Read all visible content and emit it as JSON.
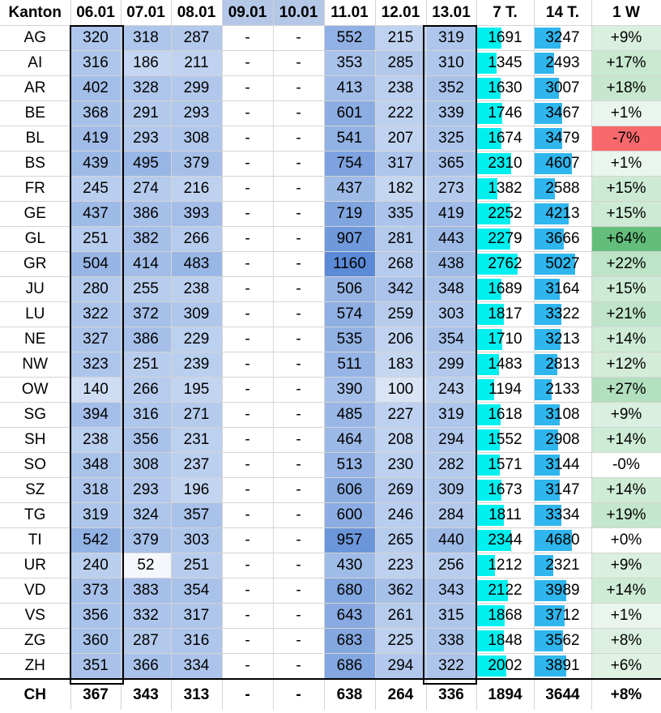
{
  "header": {
    "kanton": "Kanton",
    "days": [
      "06.01",
      "07.01",
      "08.01",
      "09.01",
      "10.01",
      "11.01",
      "12.01",
      "13.01"
    ],
    "sum7": "7 T.",
    "sum14": "14 T.",
    "week": "1 W"
  },
  "chart_data": {
    "type": "table",
    "columns": [
      "Kanton",
      "06.01",
      "07.01",
      "08.01",
      "09.01",
      "10.01",
      "11.01",
      "12.01",
      "13.01",
      "7 T.",
      "14 T.",
      "1 W"
    ],
    "rows": [
      {
        "k": "AG",
        "d": [
          "320",
          "318",
          "287",
          "-",
          "-",
          "552",
          "215",
          "319"
        ],
        "t7": "1691",
        "t14": "3247",
        "w": "+9%"
      },
      {
        "k": "AI",
        "d": [
          "316",
          "186",
          "211",
          "-",
          "-",
          "353",
          "285",
          "310"
        ],
        "t7": "1345",
        "t14": "2493",
        "w": "+17%"
      },
      {
        "k": "AR",
        "d": [
          "402",
          "328",
          "299",
          "-",
          "-",
          "413",
          "238",
          "352"
        ],
        "t7": "1630",
        "t14": "3007",
        "w": "+18%"
      },
      {
        "k": "BE",
        "d": [
          "368",
          "291",
          "293",
          "-",
          "-",
          "601",
          "222",
          "339"
        ],
        "t7": "1746",
        "t14": "3467",
        "w": "+1%"
      },
      {
        "k": "BL",
        "d": [
          "419",
          "293",
          "308",
          "-",
          "-",
          "541",
          "207",
          "325"
        ],
        "t7": "1674",
        "t14": "3479",
        "w": "-7%"
      },
      {
        "k": "BS",
        "d": [
          "439",
          "495",
          "379",
          "-",
          "-",
          "754",
          "317",
          "365"
        ],
        "t7": "2310",
        "t14": "4607",
        "w": "+1%"
      },
      {
        "k": "FR",
        "d": [
          "245",
          "274",
          "216",
          "-",
          "-",
          "437",
          "182",
          "273"
        ],
        "t7": "1382",
        "t14": "2588",
        "w": "+15%"
      },
      {
        "k": "GE",
        "d": [
          "437",
          "386",
          "393",
          "-",
          "-",
          "719",
          "335",
          "419"
        ],
        "t7": "2252",
        "t14": "4213",
        "w": "+15%"
      },
      {
        "k": "GL",
        "d": [
          "251",
          "382",
          "266",
          "-",
          "-",
          "907",
          "281",
          "443"
        ],
        "t7": "2279",
        "t14": "3666",
        "w": "+64%"
      },
      {
        "k": "GR",
        "d": [
          "504",
          "414",
          "483",
          "-",
          "-",
          "1160",
          "268",
          "438"
        ],
        "t7": "2762",
        "t14": "5027",
        "w": "+22%"
      },
      {
        "k": "JU",
        "d": [
          "280",
          "255",
          "238",
          "-",
          "-",
          "506",
          "342",
          "348"
        ],
        "t7": "1689",
        "t14": "3164",
        "w": "+15%"
      },
      {
        "k": "LU",
        "d": [
          "322",
          "372",
          "309",
          "-",
          "-",
          "574",
          "259",
          "303"
        ],
        "t7": "1817",
        "t14": "3322",
        "w": "+21%"
      },
      {
        "k": "NE",
        "d": [
          "327",
          "386",
          "229",
          "-",
          "-",
          "535",
          "206",
          "354"
        ],
        "t7": "1710",
        "t14": "3213",
        "w": "+14%"
      },
      {
        "k": "NW",
        "d": [
          "323",
          "251",
          "239",
          "-",
          "-",
          "511",
          "183",
          "299"
        ],
        "t7": "1483",
        "t14": "2813",
        "w": "+12%"
      },
      {
        "k": "OW",
        "d": [
          "140",
          "266",
          "195",
          "-",
          "-",
          "390",
          "100",
          "243"
        ],
        "t7": "1194",
        "t14": "2133",
        "w": "+27%"
      },
      {
        "k": "SG",
        "d": [
          "394",
          "316",
          "271",
          "-",
          "-",
          "485",
          "227",
          "319"
        ],
        "t7": "1618",
        "t14": "3108",
        "w": "+9%"
      },
      {
        "k": "SH",
        "d": [
          "238",
          "356",
          "231",
          "-",
          "-",
          "464",
          "208",
          "294"
        ],
        "t7": "1552",
        "t14": "2908",
        "w": "+14%"
      },
      {
        "k": "SO",
        "d": [
          "348",
          "308",
          "237",
          "-",
          "-",
          "513",
          "230",
          "282"
        ],
        "t7": "1571",
        "t14": "3144",
        "w": "-0%"
      },
      {
        "k": "SZ",
        "d": [
          "318",
          "293",
          "196",
          "-",
          "-",
          "606",
          "269",
          "309"
        ],
        "t7": "1673",
        "t14": "3147",
        "w": "+14%"
      },
      {
        "k": "TG",
        "d": [
          "319",
          "324",
          "357",
          "-",
          "-",
          "600",
          "246",
          "284"
        ],
        "t7": "1811",
        "t14": "3334",
        "w": "+19%"
      },
      {
        "k": "TI",
        "d": [
          "542",
          "379",
          "303",
          "-",
          "-",
          "957",
          "265",
          "440"
        ],
        "t7": "2344",
        "t14": "4680",
        "w": "+0%"
      },
      {
        "k": "UR",
        "d": [
          "240",
          "52",
          "251",
          "-",
          "-",
          "430",
          "223",
          "256"
        ],
        "t7": "1212",
        "t14": "2321",
        "w": "+9%"
      },
      {
        "k": "VD",
        "d": [
          "373",
          "383",
          "354",
          "-",
          "-",
          "680",
          "362",
          "343"
        ],
        "t7": "2122",
        "t14": "3989",
        "w": "+14%"
      },
      {
        "k": "VS",
        "d": [
          "356",
          "332",
          "317",
          "-",
          "-",
          "643",
          "261",
          "315"
        ],
        "t7": "1868",
        "t14": "3712",
        "w": "+1%"
      },
      {
        "k": "ZG",
        "d": [
          "360",
          "287",
          "316",
          "-",
          "-",
          "683",
          "225",
          "338"
        ],
        "t7": "1848",
        "t14": "3562",
        "w": "+8%"
      },
      {
        "k": "ZH",
        "d": [
          "351",
          "366",
          "334",
          "-",
          "-",
          "686",
          "294",
          "322"
        ],
        "t7": "2002",
        "t14": "3891",
        "w": "+6%"
      }
    ],
    "total": {
      "k": "CH",
      "d": [
        "367",
        "343",
        "313",
        "-",
        "-",
        "638",
        "264",
        "336"
      ],
      "t7": "1894",
      "t14": "3644",
      "w": "+8%"
    },
    "colors": {
      "heat_low": "#f4f8fd",
      "heat_high": "#5b8ad6",
      "header_blank_days": "#b4c7e7",
      "bar7": "#00f0f0",
      "bar14": "#2fb6ee",
      "pos_strong": "#63be7b",
      "neg_strong": "#f8696b"
    }
  }
}
